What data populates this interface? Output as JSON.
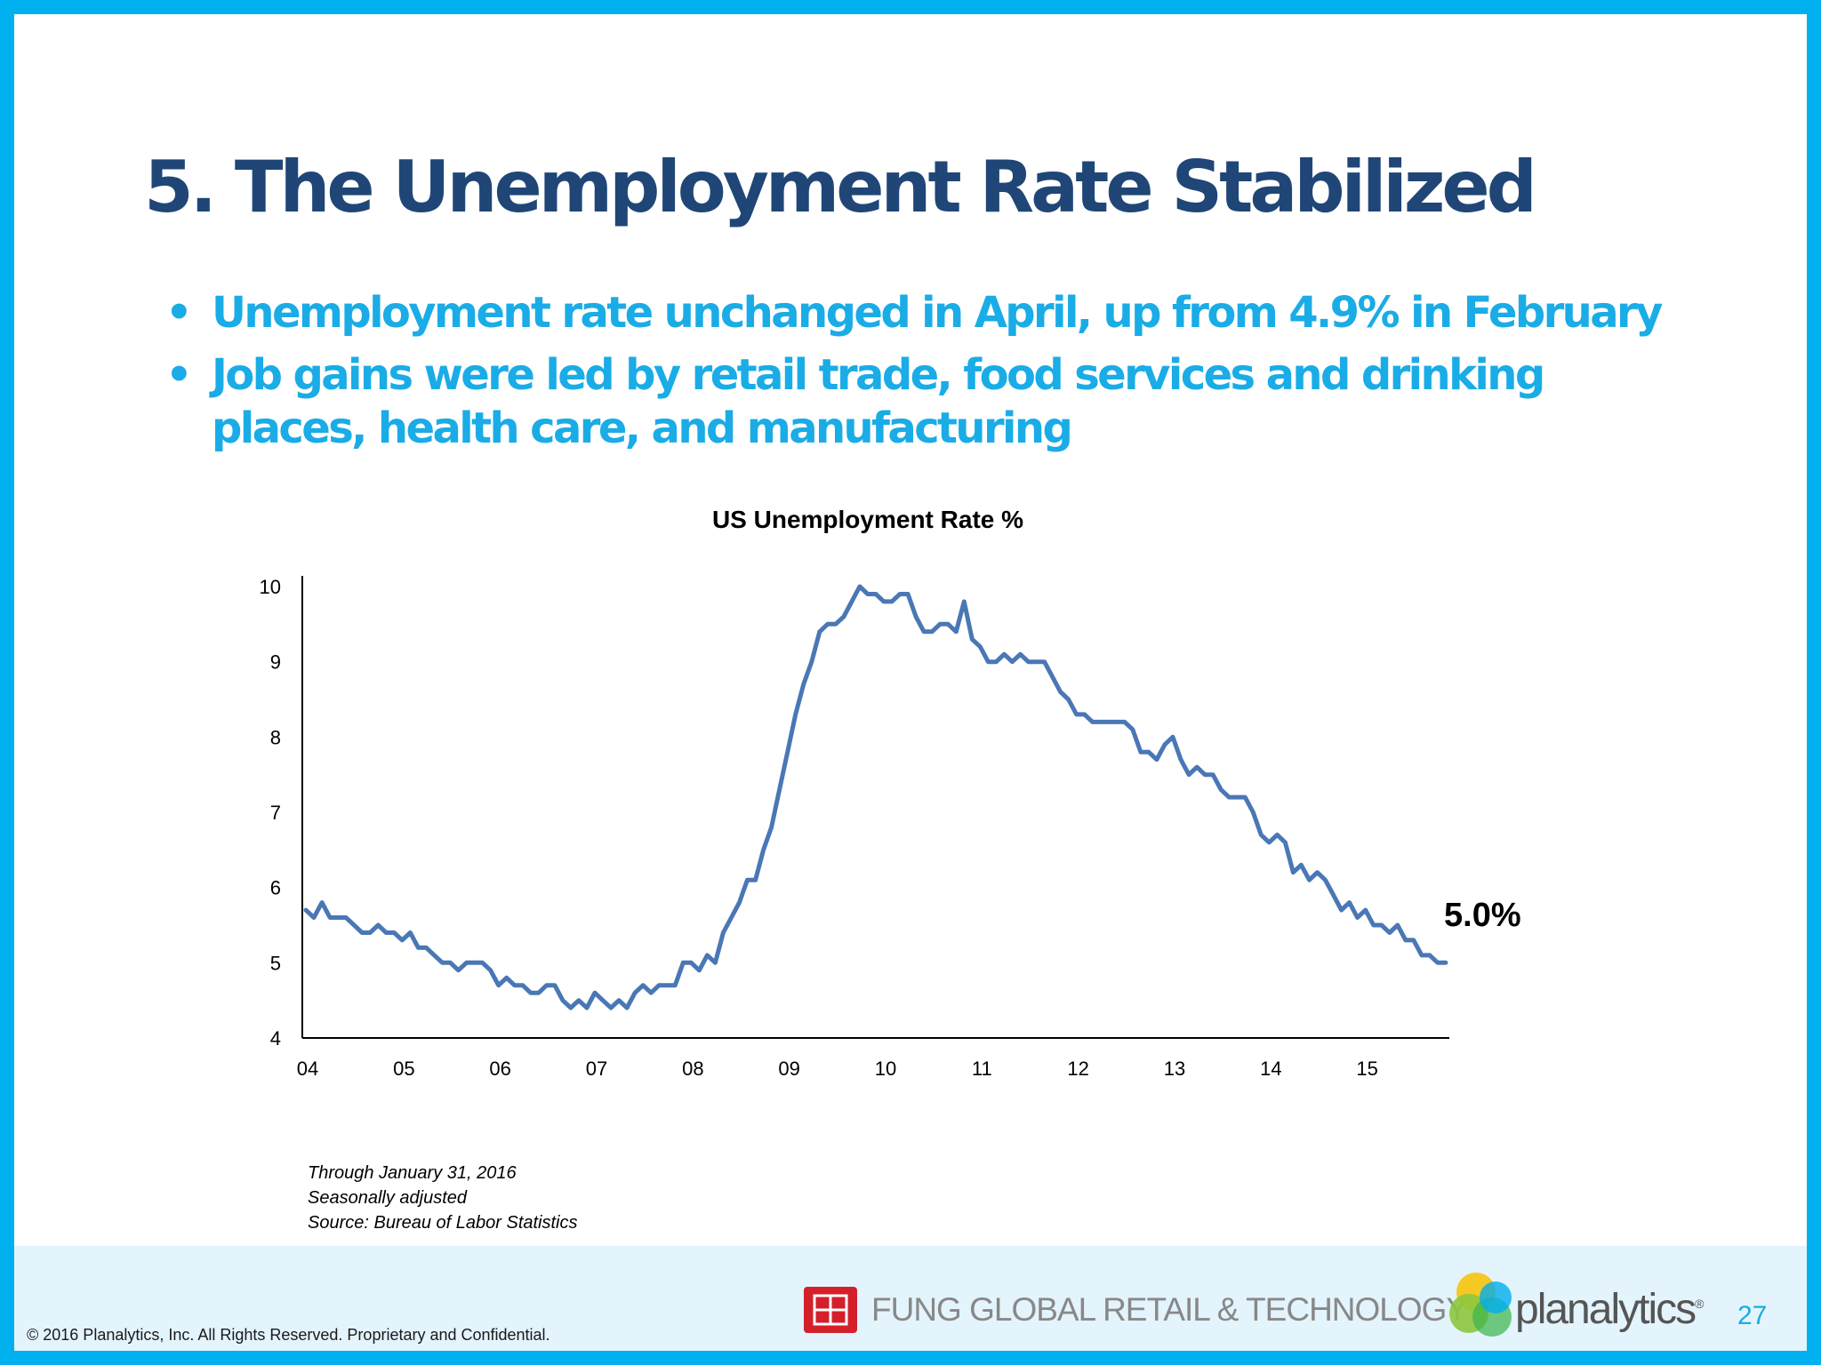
{
  "slide": {
    "title": "5. The Unemployment Rate Stabilized",
    "bullets": [
      "Unemployment rate unchanged in April, up from 4.9% in February",
      "Job gains were led by retail trade, food services and drinking places, health care, and manufacturing"
    ],
    "bullet_glyph": "•",
    "notes": [
      "Through January 31, 2016",
      "Seasonally adjusted",
      "Source: Bureau of Labor Statistics"
    ],
    "page_number": "27"
  },
  "footer": {
    "copyright": "© 2016 Planalytics, Inc. All Rights Reserved. Proprietary and Confidential.",
    "fung_text": "FUNG GLOBAL RETAIL & TECHNOLOGY",
    "planalytics_text": "planalytics",
    "planalytics_mark": "®"
  },
  "chart_data": {
    "type": "line",
    "title": "US Unemployment Rate %",
    "xlabel": "",
    "ylabel": "",
    "ylim": [
      4,
      10
    ],
    "yticks": [
      "4",
      "5",
      "6",
      "7",
      "8",
      "9",
      "10"
    ],
    "xticks": [
      "04",
      "05",
      "06",
      "07",
      "08",
      "09",
      "10",
      "11",
      "12",
      "13",
      "14",
      "15"
    ],
    "x_start": "2004-01",
    "x_frequency": "monthly",
    "grid": false,
    "annotation": "5.0%",
    "line_color": "#4a77b5",
    "series": [
      {
        "values": [
          5.7,
          5.6,
          5.8,
          5.6,
          5.6,
          5.6,
          5.5,
          5.4,
          5.4,
          5.5,
          5.4,
          5.4,
          5.3,
          5.4,
          5.2,
          5.2,
          5.1,
          5.0,
          5.0,
          4.9,
          5.0,
          5.0,
          5.0,
          4.9,
          4.7,
          4.8,
          4.7,
          4.7,
          4.6,
          4.6,
          4.7,
          4.7,
          4.5,
          4.4,
          4.5,
          4.4,
          4.6,
          4.5,
          4.4,
          4.5,
          4.4,
          4.6,
          4.7,
          4.6,
          4.7,
          4.7,
          4.7,
          5.0,
          5.0,
          4.9,
          5.1,
          5.0,
          5.4,
          5.6,
          5.8,
          6.1,
          6.1,
          6.5,
          6.8,
          7.3,
          7.8,
          8.3,
          8.7,
          9.0,
          9.4,
          9.5,
          9.5,
          9.6,
          9.8,
          10.0,
          9.9,
          9.9,
          9.8,
          9.8,
          9.9,
          9.9,
          9.6,
          9.4,
          9.4,
          9.5,
          9.5,
          9.4,
          9.8,
          9.3,
          9.2,
          9.0,
          9.0,
          9.1,
          9.0,
          9.1,
          9.0,
          9.0,
          9.0,
          8.8,
          8.6,
          8.5,
          8.3,
          8.3,
          8.2,
          8.2,
          8.2,
          8.2,
          8.2,
          8.1,
          7.8,
          7.8,
          7.7,
          7.9,
          8.0,
          7.7,
          7.5,
          7.6,
          7.5,
          7.5,
          7.3,
          7.2,
          7.2,
          7.2,
          7.0,
          6.7,
          6.6,
          6.7,
          6.6,
          6.2,
          6.3,
          6.1,
          6.2,
          6.1,
          5.9,
          5.7,
          5.8,
          5.6,
          5.7,
          5.5,
          5.5,
          5.4,
          5.5,
          5.3,
          5.3,
          5.1,
          5.1,
          5.0,
          5.0
        ]
      }
    ]
  }
}
